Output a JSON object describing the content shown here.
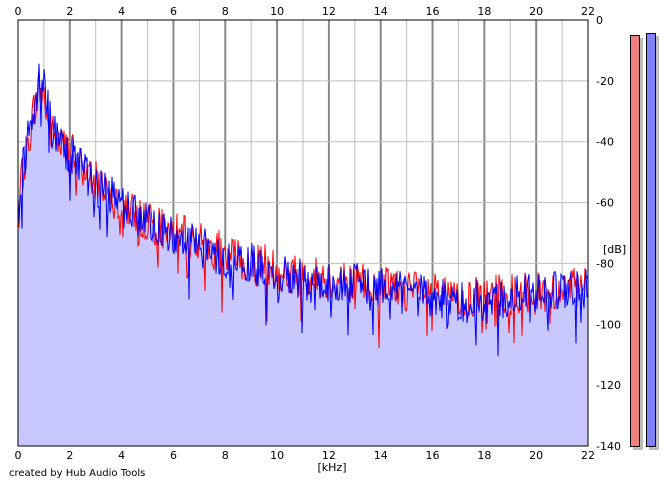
{
  "footer": {
    "credit": "created by Hub Audio Tools"
  },
  "colors": {
    "background": "#ffffff",
    "fill": "#c8c8ff",
    "left_channel": "#ff0000",
    "right_channel": "#0000ff",
    "grid_major": "#888888",
    "grid_minor": "#c0c0c0",
    "meter_left": "#f08080",
    "meter_right": "#8080ff"
  },
  "level_meters": [
    {
      "name": "left",
      "level_db": -5
    },
    {
      "name": "right",
      "level_db": -4
    }
  ],
  "chart_data": {
    "type": "area",
    "title": "",
    "xlabel": "[kHz]",
    "ylabel": "[dB]",
    "xlim": [
      0,
      22
    ],
    "ylim": [
      -140,
      0
    ],
    "x_ticks_top": [
      "0",
      "2",
      "4",
      "6",
      "8",
      "10",
      "12",
      "14",
      "16",
      "18",
      "20",
      "22"
    ],
    "x_ticks_bottom": [
      "0",
      "2",
      "4",
      "6",
      "8",
      "10",
      "12",
      "14",
      "16",
      "18",
      "20",
      "22"
    ],
    "y_ticks": [
      "0",
      "-20",
      "-40",
      "-60",
      "-80",
      "-100",
      "-120",
      "-140"
    ],
    "grid": true,
    "series": [
      {
        "channel": "left",
        "color": "#ff0000",
        "x": [
          0,
          0.3,
          0.6,
          0.8,
          1.0,
          1.2,
          1.5,
          2.0,
          2.5,
          3.0,
          3.5,
          4.0,
          5.0,
          6.0,
          7.0,
          8.0,
          9.0,
          10.0,
          11.0,
          12.0,
          13.0,
          14.0,
          15.0,
          16.0,
          17.0,
          18.0,
          19.0,
          20.0,
          21.0,
          22.0
        ],
        "y": [
          -60,
          -45,
          -30,
          -22,
          -25,
          -35,
          -40,
          -43,
          -48,
          -53,
          -56,
          -60,
          -66,
          -70,
          -73,
          -77,
          -79,
          -82,
          -84,
          -85,
          -86,
          -87,
          -89,
          -90,
          -92,
          -91,
          -90,
          -90,
          -89,
          -88
        ]
      },
      {
        "channel": "right",
        "color": "#0000ff",
        "x": [
          0,
          0.3,
          0.6,
          0.8,
          1.0,
          1.2,
          1.5,
          2.0,
          2.5,
          3.0,
          3.5,
          4.0,
          5.0,
          6.0,
          7.0,
          8.0,
          9.0,
          10.0,
          11.0,
          12.0,
          13.0,
          14.0,
          15.0,
          16.0,
          17.0,
          18.0,
          19.0,
          20.0,
          21.0,
          22.0
        ],
        "y": [
          -58,
          -44,
          -28,
          -18,
          -22,
          -32,
          -40,
          -44,
          -49,
          -54,
          -57,
          -61,
          -67,
          -71,
          -74,
          -78,
          -80,
          -83,
          -85,
          -86,
          -87,
          -88,
          -90,
          -91,
          -93,
          -92,
          -91,
          -90,
          -89,
          -88
        ]
      }
    ]
  }
}
